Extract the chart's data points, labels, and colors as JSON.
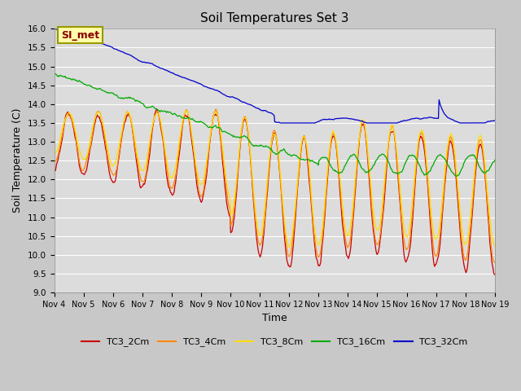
{
  "title": "Soil Temperatures Set 3",
  "xlabel": "Time",
  "ylabel": "Soil Temperature (C)",
  "ylim": [
    9.0,
    16.0
  ],
  "yticks": [
    9.0,
    9.5,
    10.0,
    10.5,
    11.0,
    11.5,
    12.0,
    12.5,
    13.0,
    13.5,
    14.0,
    14.5,
    15.0,
    15.5,
    16.0
  ],
  "xtick_labels": [
    "Nov 4",
    "Nov 5",
    "Nov 6",
    "Nov 7",
    "Nov 8",
    "Nov 9",
    "Nov 10",
    "Nov 11",
    "Nov 12",
    "Nov 13",
    "Nov 14",
    "Nov 15",
    "Nov 16",
    "Nov 17",
    "Nov 18",
    "Nov 19"
  ],
  "series_labels": [
    "TC3_2Cm",
    "TC3_4Cm",
    "TC3_8Cm",
    "TC3_16Cm",
    "TC3_32Cm"
  ],
  "series_colors": [
    "#cc0000",
    "#ff8800",
    "#ffdd00",
    "#00aa00",
    "#0000cc"
  ],
  "annotation_text": "SI_met",
  "plot_bg_color": "#dcdcdc",
  "fig_bg_color": "#c8c8c8",
  "grid_color": "#ffffff"
}
